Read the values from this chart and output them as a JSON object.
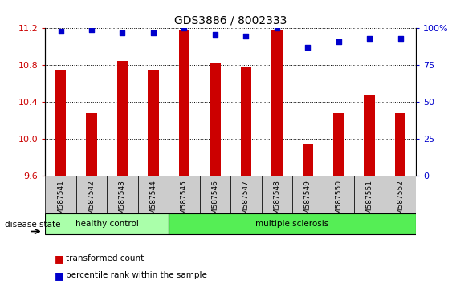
{
  "title": "GDS3886 / 8002333",
  "samples": [
    "GSM587541",
    "GSM587542",
    "GSM587543",
    "GSM587544",
    "GSM587545",
    "GSM587546",
    "GSM587547",
    "GSM587548",
    "GSM587549",
    "GSM587550",
    "GSM587551",
    "GSM587552"
  ],
  "transformed_count": [
    10.75,
    10.28,
    10.85,
    10.75,
    11.18,
    10.82,
    10.78,
    11.18,
    9.95,
    10.28,
    10.48,
    10.28
  ],
  "percentile_rank": [
    98,
    99,
    97,
    97,
    100,
    96,
    95,
    100,
    87,
    91,
    93,
    93
  ],
  "ylim_left": [
    9.6,
    11.2
  ],
  "ylim_right": [
    0,
    100
  ],
  "yticks_left": [
    9.6,
    10.0,
    10.4,
    10.8,
    11.2
  ],
  "yticks_right": [
    0,
    25,
    50,
    75,
    100
  ],
  "bar_color": "#cc0000",
  "dot_color": "#0000cc",
  "healthy_control_count": 4,
  "healthy_color": "#aaffaa",
  "ms_color": "#55ee55",
  "group_label_healthy": "healthy control",
  "group_label_ms": "multiple sclerosis",
  "legend_bar_label": "transformed count",
  "legend_dot_label": "percentile rank within the sample",
  "disease_state_label": "disease state",
  "background_color": "#ffffff",
  "sample_box_color": "#cccccc",
  "bar_width": 0.35
}
